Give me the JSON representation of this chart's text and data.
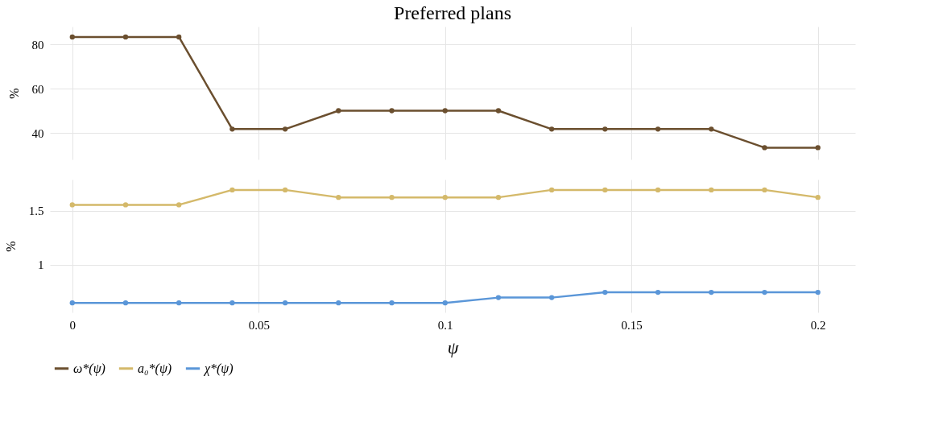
{
  "chart_data": [
    {
      "type": "line",
      "title": "Preferred plans",
      "ylabel": "%",
      "x": [
        0,
        0.0143,
        0.0286,
        0.0429,
        0.0571,
        0.0714,
        0.0857,
        0.1,
        0.1143,
        0.1286,
        0.1429,
        0.1571,
        0.1714,
        0.1857,
        0.2
      ],
      "series": [
        {
          "name": "ω*(ψ)",
          "color": "#6b4f2f",
          "values": [
            83.3,
            83.3,
            83.3,
            41.7,
            41.7,
            50,
            50,
            50,
            50,
            41.7,
            41.7,
            41.7,
            41.7,
            33.3,
            33.3
          ]
        }
      ],
      "xlim": [
        -0.006,
        0.21
      ],
      "xticks": [
        0,
        0.05,
        0.1,
        0.15,
        0.2
      ],
      "ylim": [
        28,
        88
      ],
      "yticks": [
        40,
        60,
        80
      ],
      "grid": true,
      "marker": "circle",
      "tick_labels": "y",
      "legend": "bottom left"
    },
    {
      "type": "line",
      "xlabel": "ψ",
      "ylabel": "%",
      "x": [
        0,
        0.0143,
        0.0286,
        0.0429,
        0.0571,
        0.0714,
        0.0857,
        0.1,
        0.1143,
        0.1286,
        0.1429,
        0.1571,
        0.1714,
        0.1857,
        0.2
      ],
      "series": [
        {
          "name": "a₀*(ψ)",
          "color": "#d4b96a",
          "values": [
            1.556,
            1.556,
            1.556,
            1.694,
            1.694,
            1.625,
            1.625,
            1.625,
            1.625,
            1.694,
            1.694,
            1.694,
            1.694,
            1.694,
            1.625
          ]
        },
        {
          "name": "χ*(ψ)",
          "color": "#5a96d8",
          "values": [
            0.648,
            0.648,
            0.648,
            0.648,
            0.648,
            0.648,
            0.648,
            0.648,
            0.697,
            0.697,
            0.746,
            0.746,
            0.746,
            0.746,
            0.746
          ]
        }
      ],
      "xlim": [
        -0.006,
        0.21
      ],
      "xticks": [
        0,
        0.05,
        0.1,
        0.15,
        0.2
      ],
      "ylim": [
        0.56,
        1.79
      ],
      "yticks": [
        1,
        1.5
      ],
      "grid": true,
      "marker": "circle",
      "legend": "bottom left"
    }
  ]
}
